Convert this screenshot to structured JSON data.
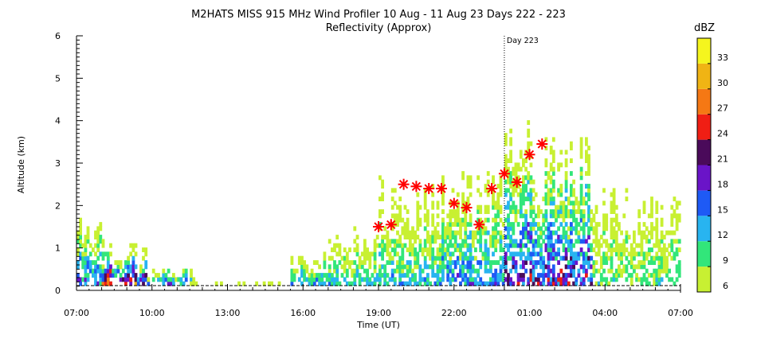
{
  "chart_data": {
    "type": "heatmap",
    "title": "M2HATS MISS 915 MHz Wind Profiler  10 Aug - 11 Aug 23 Days 222 - 223",
    "subtitle": "Reflectivity (Approx)",
    "xlabel": "Time (UT)",
    "ylabel": "Altitude (km)",
    "x_tick_labels": [
      "07:00",
      "10:00",
      "13:00",
      "16:00",
      "19:00",
      "22:00",
      "01:00",
      "04:00",
      "07:00"
    ],
    "x_tick_hours": [
      0,
      3,
      6,
      9,
      12,
      15,
      18,
      21,
      24
    ],
    "xlim_hours_since_0700": [
      0,
      24
    ],
    "ylim": [
      0,
      6
    ],
    "y_ticks": [
      0,
      1,
      2,
      3,
      4,
      5,
      6
    ],
    "day_marker": {
      "label": "Day 223",
      "hours_since_0700": 17
    },
    "colorbar": {
      "unit": "dBZ",
      "levels": [
        6,
        9,
        12,
        15,
        18,
        21,
        24,
        27,
        30,
        33
      ],
      "colors": [
        "#c8f032",
        "#32e67a",
        "#28b4f0",
        "#1e5af5",
        "#6a14c8",
        "#4a0a5a",
        "#f01e14",
        "#f57814",
        "#f0b414",
        "#f5f51e"
      ]
    },
    "markers": {
      "symbol": "asterisk",
      "color": "#ff0000",
      "points": [
        {
          "t_hours": 12.0,
          "alt_km": 1.5
        },
        {
          "t_hours": 12.5,
          "alt_km": 1.55
        },
        {
          "t_hours": 13.0,
          "alt_km": 2.5
        },
        {
          "t_hours": 13.5,
          "alt_km": 2.45
        },
        {
          "t_hours": 14.0,
          "alt_km": 2.4
        },
        {
          "t_hours": 14.5,
          "alt_km": 2.4
        },
        {
          "t_hours": 15.0,
          "alt_km": 2.05
        },
        {
          "t_hours": 15.5,
          "alt_km": 1.95
        },
        {
          "t_hours": 16.0,
          "alt_km": 1.55
        },
        {
          "t_hours": 16.5,
          "alt_km": 2.4
        },
        {
          "t_hours": 17.0,
          "alt_km": 2.75
        },
        {
          "t_hours": 17.5,
          "alt_km": 2.55
        },
        {
          "t_hours": 18.0,
          "alt_km": 3.2
        },
        {
          "t_hours": 18.5,
          "alt_km": 3.45
        }
      ]
    },
    "echo_regions": [
      {
        "t0": 0.0,
        "t1": 1.0,
        "top_km": 1.8,
        "max_dbz": 20
      },
      {
        "t0": 1.0,
        "t1": 2.8,
        "top_km": 1.0,
        "max_dbz": 33
      },
      {
        "t0": 2.8,
        "t1": 4.5,
        "top_km": 0.5,
        "max_dbz": 24
      },
      {
        "t0": 4.5,
        "t1": 8.5,
        "top_km": 0.3,
        "max_dbz": 8
      },
      {
        "t0": 8.5,
        "t1": 10.0,
        "top_km": 0.9,
        "max_dbz": 18
      },
      {
        "t0": 10.0,
        "t1": 12.0,
        "top_km": 1.5,
        "max_dbz": 15
      },
      {
        "t0": 12.0,
        "t1": 14.5,
        "top_km": 2.8,
        "max_dbz": 15
      },
      {
        "t0": 14.5,
        "t1": 17.0,
        "top_km": 3.0,
        "max_dbz": 18
      },
      {
        "t0": 17.0,
        "t1": 20.5,
        "top_km": 4.0,
        "max_dbz": 24
      },
      {
        "t0": 20.5,
        "t1": 24.0,
        "top_km": 2.8,
        "max_dbz": 12
      }
    ]
  }
}
